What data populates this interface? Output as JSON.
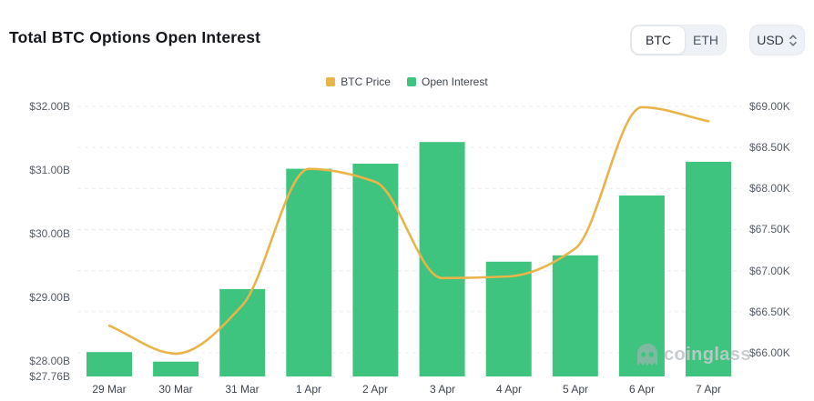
{
  "header": {
    "title": "Total BTC Options Open Interest"
  },
  "controls": {
    "coin_toggle": {
      "options": [
        "BTC",
        "ETH"
      ],
      "selected": "BTC"
    },
    "currency": {
      "value": "USD"
    }
  },
  "legend": [
    {
      "label": "BTC Price",
      "color": "#E9B449"
    },
    {
      "label": "Open Interest",
      "color": "#3EC47F"
    }
  ],
  "watermark": {
    "text": "coinglass"
  },
  "chart_data": {
    "type": "bar",
    "subtype": "bar+line dual axis",
    "categories": [
      "29 Mar",
      "30 Mar",
      "31 Mar",
      "1 Apr",
      "2 Apr",
      "3 Apr",
      "4 Apr",
      "5 Apr",
      "6 Apr",
      "7 Apr"
    ],
    "series": [
      {
        "name": "Open Interest",
        "type": "bar",
        "axis": "left",
        "unit": "USD billions",
        "color": "#3EC47F",
        "values": [
          28.14,
          27.99,
          29.13,
          31.02,
          31.1,
          31.44,
          29.56,
          29.66,
          30.6,
          31.13
        ]
      },
      {
        "name": "BTC Price",
        "type": "line",
        "axis": "right",
        "unit": "USD thousands",
        "color": "#E9B449",
        "values": [
          66.33,
          65.99,
          66.58,
          68.24,
          68.08,
          66.91,
          66.93,
          67.27,
          68.99,
          68.82
        ]
      }
    ],
    "left_axis": {
      "tick_labels": [
        "$32.00B",
        "$31.00B",
        "$30.00B",
        "$29.00B",
        "$28.00B",
        "$27.76B"
      ],
      "tick_values": [
        32,
        31,
        30,
        29,
        28,
        27.76
      ],
      "min": 27.76,
      "max": 32.17
    },
    "right_axis": {
      "tick_labels": [
        "$69.00K",
        "$68.50K",
        "$68.00K",
        "$67.50K",
        "$67.00K",
        "$66.50K",
        "$66.00K"
      ],
      "tick_values": [
        69,
        68.5,
        68,
        67.5,
        67,
        66.5,
        66
      ],
      "min": 65.87,
      "max": 69.13
    },
    "title": "Total BTC Options Open Interest",
    "legend_position": "top-center",
    "grid": "horizontal dashed lines at right-axis ticks",
    "grid_color": "#e9ecf0"
  }
}
